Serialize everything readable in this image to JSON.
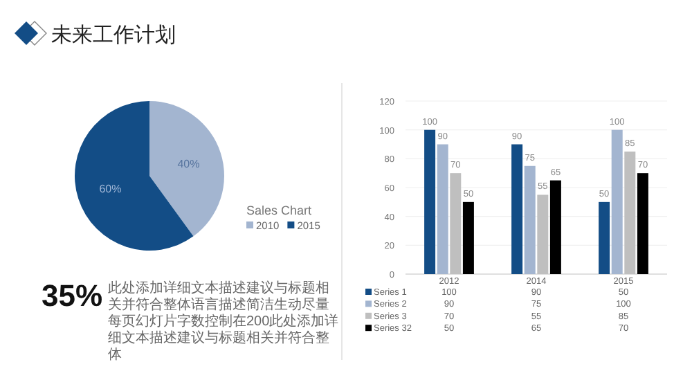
{
  "chart_data": [
    {
      "type": "pie",
      "title": "未来工作计划",
      "legend_title": "Sales Chart",
      "legend": "right",
      "categories": [
        "2010",
        "2015"
      ],
      "values": [
        40,
        60
      ],
      "colors": [
        "#a3b5d0",
        "#134d86"
      ],
      "value_labels": [
        "40%",
        "60%"
      ],
      "annotations": [
        "35%",
        "此处添加详细文本描述建议与标题相关并符合整体语言描述简洁生动尽量每页幻灯片字数控制在200此处添加详细文本描述建议与标题相关并符合整体"
      ]
    },
    {
      "type": "bar",
      "categories": [
        "2012",
        "2014",
        "2015"
      ],
      "ylim": [
        0,
        120
      ],
      "yticks": [
        0,
        20,
        40,
        60,
        80,
        100,
        120
      ],
      "grid": "y",
      "legend": "bottom",
      "annotations": [
        "100",
        "90",
        "50",
        "90",
        "75",
        "100",
        "70",
        "55",
        "85",
        "50",
        "65",
        "70"
      ],
      "series": [
        {
          "name": "Series 1",
          "color": "#134d86",
          "values": [
            100,
            90,
            50
          ],
          "value_labels": [
            "100",
            "90",
            "50"
          ]
        },
        {
          "name": "Series 2",
          "color": "#a3b5d0",
          "values": [
            90,
            75,
            100
          ],
          "value_labels": [
            "90",
            "75",
            "100"
          ]
        },
        {
          "name": "Series 3",
          "color": "#bfbfbf",
          "values": [
            70,
            55,
            85
          ],
          "value_labels": [
            "70",
            "55",
            "85"
          ]
        },
        {
          "name": "Series 32",
          "color": "#000000",
          "values": [
            50,
            65,
            70
          ],
          "value_labels": [
            "50",
            "65",
            "70"
          ]
        }
      ]
    }
  ]
}
